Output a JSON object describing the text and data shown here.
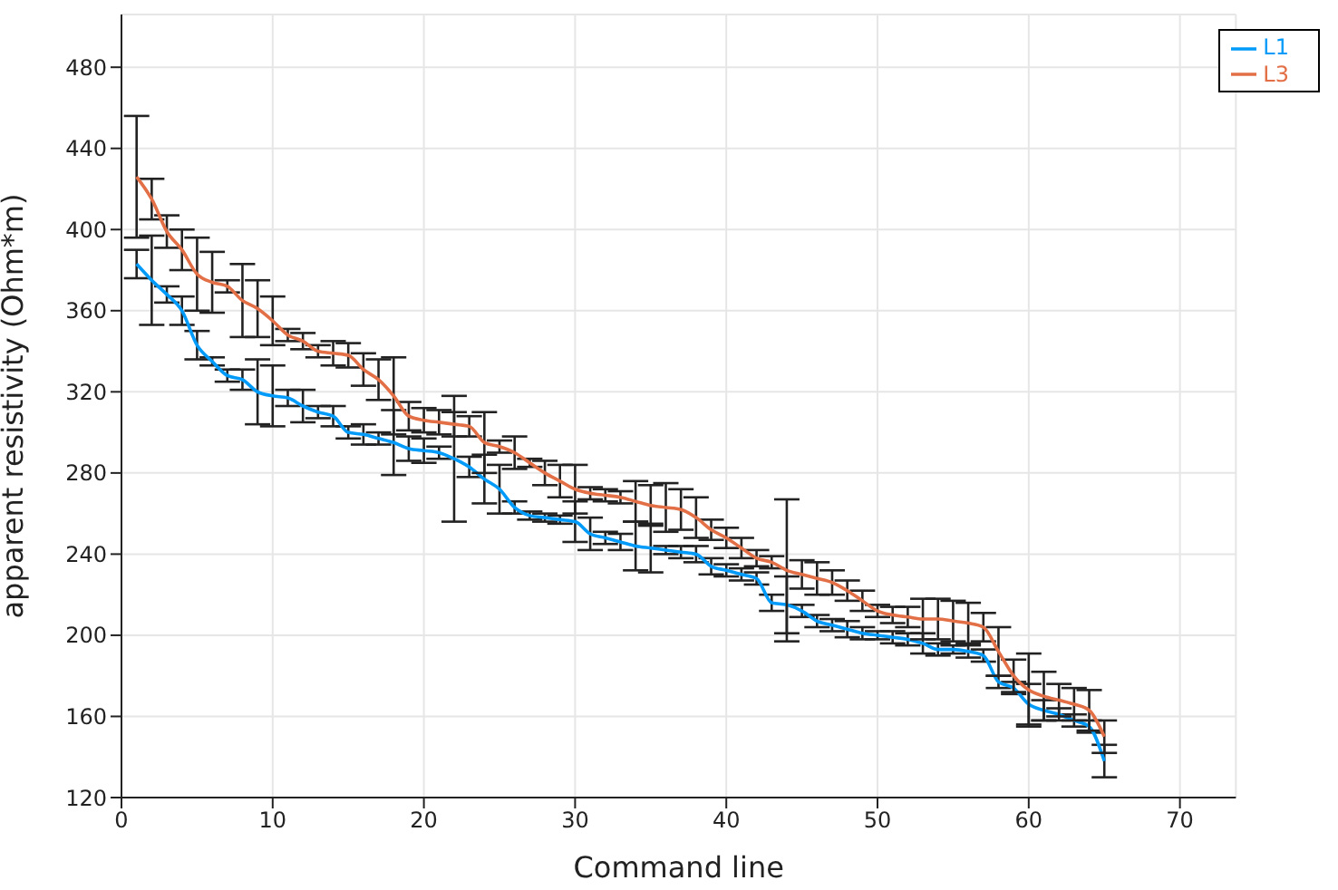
{
  "chart_data": {
    "type": "line",
    "xlabel": "Command line",
    "ylabel": "apparent resistivity (Ohm*m)",
    "x": [
      1,
      2,
      3,
      4,
      5,
      6,
      7,
      8,
      9,
      10,
      11,
      12,
      13,
      14,
      15,
      16,
      17,
      18,
      19,
      20,
      21,
      22,
      23,
      24,
      25,
      26,
      27,
      28,
      29,
      30,
      31,
      32,
      33,
      34,
      35,
      36,
      37,
      38,
      39,
      40,
      41,
      42,
      43,
      44,
      45,
      46,
      47,
      48,
      49,
      50,
      51,
      52,
      53,
      54,
      55,
      56,
      57,
      58,
      59,
      60,
      61,
      62,
      63,
      64,
      65
    ],
    "xlim": [
      0,
      73.7
    ],
    "xticks": [
      0,
      10,
      20,
      30,
      40,
      50,
      60,
      70
    ],
    "ylim": [
      120,
      506
    ],
    "yticks": [
      120,
      160,
      200,
      240,
      280,
      320,
      360,
      400,
      440,
      480
    ],
    "grid": true,
    "legend": "top right",
    "series": [
      {
        "name": "L1",
        "color": "#009af9",
        "values": [
          383,
          375,
          368,
          360,
          343,
          335,
          328,
          326,
          320,
          318,
          317,
          313,
          310,
          308,
          300,
          299,
          297,
          295,
          292,
          291,
          290,
          287,
          283,
          277,
          272,
          263,
          259,
          258,
          257,
          256,
          250,
          248,
          246,
          244,
          243,
          242,
          241,
          240,
          234,
          232,
          230,
          228,
          216,
          215,
          212,
          207,
          205,
          203,
          201,
          200,
          199,
          198,
          196,
          193,
          193,
          192,
          190,
          177,
          174,
          166,
          163,
          161,
          158,
          155,
          138
        ],
        "errors": [
          7,
          22,
          4,
          7,
          7,
          2,
          3,
          5,
          16,
          15,
          4,
          8,
          3,
          5,
          3,
          5,
          3,
          16,
          6,
          6,
          3,
          31,
          5,
          12,
          12,
          3,
          2,
          2,
          2,
          10,
          8,
          3,
          4,
          12,
          12,
          2,
          3,
          4,
          4,
          3,
          3,
          3,
          4,
          14,
          3,
          3,
          3,
          4,
          3,
          2,
          3,
          3,
          5,
          3,
          2,
          3,
          3,
          3,
          3,
          10,
          5,
          3,
          3,
          3,
          8
        ]
      },
      {
        "name": "L3",
        "color": "#e26f46",
        "values": [
          426,
          415,
          399,
          390,
          378,
          374,
          372,
          365,
          361,
          355,
          348,
          345,
          340,
          339,
          338,
          331,
          326,
          318,
          308,
          306,
          305,
          304,
          303,
          295,
          293,
          290,
          285,
          280,
          276,
          272,
          270,
          269,
          268,
          266,
          264,
          263,
          262,
          258,
          252,
          248,
          243,
          238,
          236,
          232,
          230,
          228,
          226,
          222,
          217,
          212,
          210,
          209,
          208,
          208,
          207,
          206,
          204,
          192,
          180,
          173,
          170,
          168,
          166,
          163,
          150
        ],
        "errors": [
          30,
          10,
          8,
          10,
          18,
          15,
          3,
          18,
          14,
          12,
          3,
          4,
          3,
          6,
          6,
          8,
          10,
          19,
          7,
          6,
          6,
          6,
          5,
          15,
          3,
          8,
          2,
          6,
          8,
          12,
          3,
          3,
          3,
          10,
          10,
          12,
          10,
          10,
          5,
          5,
          5,
          4,
          3,
          35,
          7,
          8,
          6,
          5,
          5,
          3,
          4,
          5,
          10,
          10,
          10,
          10,
          7,
          12,
          8,
          18,
          12,
          8,
          8,
          10,
          8
        ]
      }
    ]
  }
}
